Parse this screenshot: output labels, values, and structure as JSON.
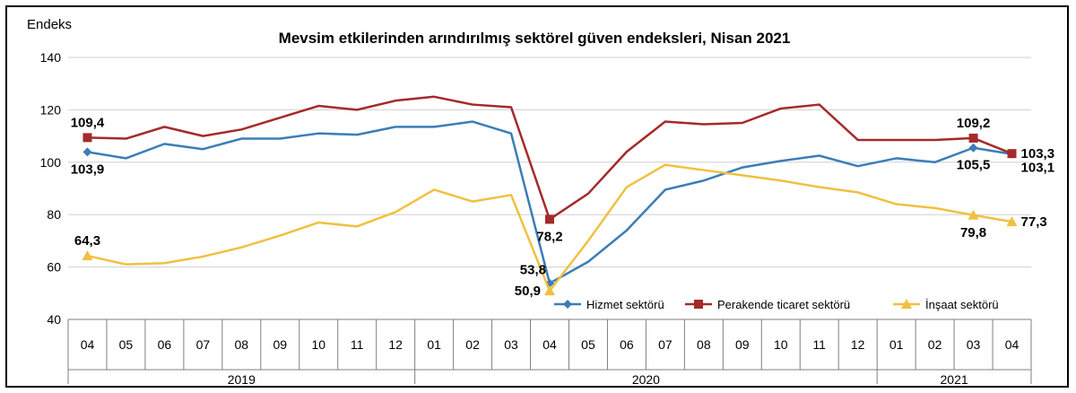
{
  "chart_data": {
    "type": "line",
    "title": "Mevsim etkilerinden arındırılmış sektörel güven endeksleri, Nisan 2021",
    "ylabel": "Endeks",
    "xlabel": "",
    "ylim": [
      40,
      140
    ],
    "yticks": [
      40,
      60,
      80,
      100,
      120,
      140
    ],
    "grid": "horizontal",
    "legend_position": "bottom-right",
    "categories": [
      "04",
      "05",
      "06",
      "07",
      "08",
      "09",
      "10",
      "11",
      "12",
      "01",
      "02",
      "03",
      "04",
      "05",
      "06",
      "07",
      "08",
      "09",
      "10",
      "11",
      "12",
      "01",
      "02",
      "03",
      "04"
    ],
    "year_groups": [
      {
        "label": "2019",
        "start": 0,
        "end": 8
      },
      {
        "label": "2020",
        "start": 9,
        "end": 20
      },
      {
        "label": "2021",
        "start": 21,
        "end": 24
      }
    ],
    "series": [
      {
        "name": "Hizmet sektörü",
        "color": "#3b7db8",
        "marker": "diamond",
        "values": [
          103.9,
          101.5,
          107.0,
          105.0,
          109.0,
          109.0,
          111.0,
          110.5,
          113.5,
          113.5,
          115.5,
          111.0,
          53.8,
          62.0,
          74.0,
          89.5,
          93.0,
          98.0,
          100.5,
          102.5,
          98.5,
          101.5,
          100.0,
          105.5,
          103.1
        ],
        "labels": [
          {
            "index": 0,
            "text": "103,9",
            "pos": "below"
          },
          {
            "index": 12,
            "text": "53,8",
            "pos": "left-above"
          },
          {
            "index": 23,
            "text": "105,5",
            "pos": "below"
          },
          {
            "index": 24,
            "text": "103,1",
            "pos": "right-below"
          }
        ]
      },
      {
        "name": "Perakende ticaret sektörü",
        "color": "#a52a2a",
        "marker": "square",
        "values": [
          109.4,
          109.0,
          113.5,
          110.0,
          112.5,
          117.0,
          121.5,
          120.0,
          123.5,
          125.0,
          122.0,
          121.0,
          78.2,
          88.0,
          104.0,
          115.5,
          114.5,
          115.0,
          120.5,
          122.0,
          108.5,
          108.5,
          108.5,
          109.2,
          103.3
        ],
        "labels": [
          {
            "index": 0,
            "text": "109,4",
            "pos": "above"
          },
          {
            "index": 12,
            "text": "78,2",
            "pos": "below"
          },
          {
            "index": 23,
            "text": "109,2",
            "pos": "above"
          },
          {
            "index": 24,
            "text": "103,3",
            "pos": "right"
          }
        ]
      },
      {
        "name": "İnşaat sektörü",
        "color": "#f0c040",
        "marker": "triangle",
        "values": [
          64.3,
          61.0,
          61.5,
          64.0,
          67.5,
          72.0,
          77.0,
          75.5,
          81.0,
          89.5,
          85.0,
          87.5,
          50.9,
          70.0,
          90.5,
          99.0,
          97.0,
          95.0,
          93.0,
          90.5,
          88.5,
          84.0,
          82.5,
          79.8,
          77.3
        ],
        "labels": [
          {
            "index": 0,
            "text": "64,3",
            "pos": "above"
          },
          {
            "index": 12,
            "text": "50,9",
            "pos": "left"
          },
          {
            "index": 23,
            "text": "79,8",
            "pos": "below"
          },
          {
            "index": 24,
            "text": "77,3",
            "pos": "right"
          }
        ]
      }
    ]
  }
}
